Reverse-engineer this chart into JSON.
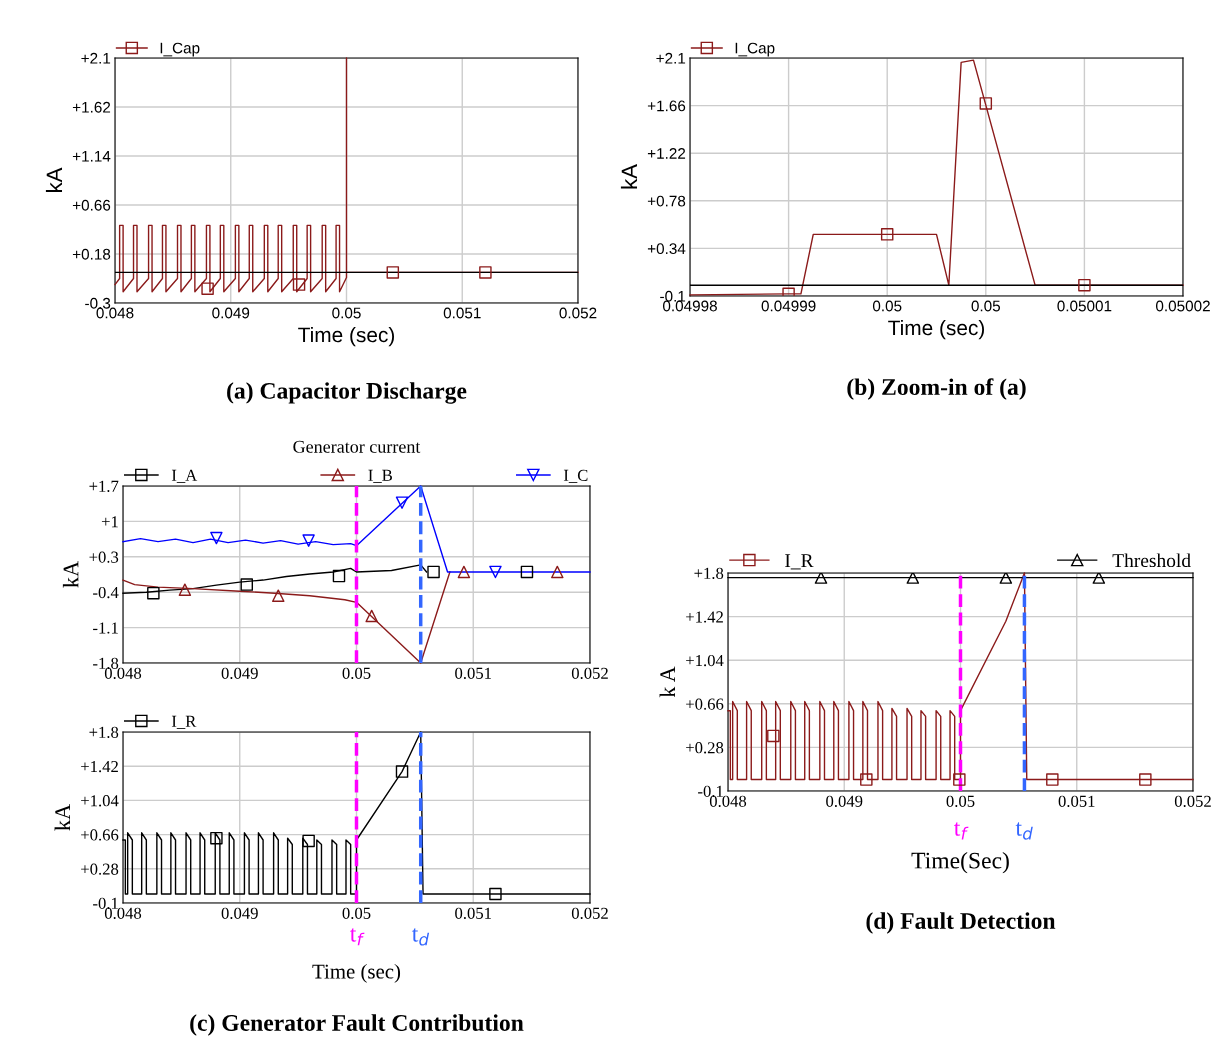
{
  "chart_data": [
    {
      "type": "line",
      "xlabel": "Time (sec)",
      "ylabel": "kA",
      "legend": "top",
      "grid": true,
      "xlim": [
        0.048,
        0.052
      ],
      "xticks": [
        0.048,
        0.049,
        0.05,
        0.051,
        0.052
      ],
      "ylim": [
        -0.3,
        2.1
      ],
      "yticks": [
        -0.3,
        {
          "value": 0.18,
          "label": "+0.18"
        },
        {
          "value": 0.66,
          "label": "+0.66"
        },
        {
          "value": 1.14,
          "label": "+1.14"
        },
        {
          "value": 1.62,
          "label": "+1.62"
        },
        {
          "value": 2.1,
          "label": "+2.1"
        }
      ],
      "ref_lines": [
        {
          "axis": "y",
          "value": 0,
          "color": "#000000",
          "line_style": "solid"
        }
      ],
      "annotations": [
        "(a) Capacitor Discharge"
      ],
      "series": [
        {
          "name": "I_Cap",
          "color": "#8b1a1a",
          "x": [
            0.048,
            0.04804,
            0.04804,
            0.04807,
            0.04807,
            0.04816,
            0.04816,
            0.04819,
            0.04819,
            0.04829,
            0.04829,
            0.04832,
            0.04832,
            0.04841,
            0.04841,
            0.04844,
            0.04844,
            0.04854,
            0.04854,
            0.04857,
            0.04857,
            0.04866,
            0.04866,
            0.04869,
            0.04869,
            0.04879,
            0.04879,
            0.04882,
            0.04882,
            0.04891,
            0.04891,
            0.04894,
            0.04894,
            0.04904,
            0.04904,
            0.04907,
            0.04907,
            0.04916,
            0.04916,
            0.04919,
            0.04919,
            0.04929,
            0.04929,
            0.04932,
            0.04932,
            0.04941,
            0.04941,
            0.04944,
            0.04944,
            0.04954,
            0.04954,
            0.04957,
            0.04957,
            0.04966,
            0.04966,
            0.04969,
            0.04969,
            0.04979,
            0.04979,
            0.04982,
            0.04982,
            0.04991,
            0.04991,
            0.04994,
            0.04994,
            0.05,
            0.05,
            0.05,
            0.052
          ],
          "values": [
            -0.12,
            -0.06,
            0.46,
            0.46,
            -0.19,
            -0.06,
            0.46,
            0.46,
            -0.19,
            -0.06,
            0.46,
            0.46,
            -0.19,
            -0.06,
            0.46,
            0.46,
            -0.19,
            -0.06,
            0.46,
            0.46,
            -0.19,
            -0.06,
            0.46,
            0.46,
            -0.19,
            -0.06,
            0.46,
            0.46,
            -0.19,
            -0.06,
            0.46,
            0.46,
            -0.19,
            -0.06,
            0.46,
            0.46,
            -0.19,
            -0.06,
            0.46,
            0.46,
            -0.19,
            -0.06,
            0.46,
            0.46,
            -0.19,
            -0.06,
            0.46,
            0.46,
            -0.19,
            -0.06,
            0.46,
            0.46,
            -0.19,
            -0.06,
            0.46,
            0.46,
            -0.19,
            -0.06,
            0.46,
            0.46,
            -0.19,
            -0.06,
            0.46,
            0.46,
            -0.19,
            -0.05,
            2.1,
            0,
            0
          ]
        },
        {
          "type": "scatter",
          "marker": "square",
          "color": "#8b1a1a",
          "x": [
            0.0488,
            0.04959,
            0.0504,
            0.0512
          ],
          "values": [
            -0.16,
            -0.12,
            0,
            0
          ]
        }
      ]
    },
    {
      "type": "line",
      "xlabel": "Time (sec)",
      "ylabel": "kA",
      "legend": "top",
      "grid": true,
      "xlim": [
        0.04998,
        0.05002
      ],
      "xticks": [
        0.04998,
        {
          "value": 0.049988,
          "label": "0.04999"
        },
        {
          "value": 0.049996,
          "label": "0.05"
        },
        {
          "value": 0.050004,
          "label": "0.05"
        },
        {
          "value": 0.050012,
          "label": "0.05001"
        },
        0.05002
      ],
      "ylim": [
        -0.1,
        2.1
      ],
      "yticks": [
        -0.1,
        {
          "value": 0.34,
          "label": "+0.34"
        },
        {
          "value": 0.78,
          "label": "+0.78"
        },
        {
          "value": 1.22,
          "label": "+1.22"
        },
        {
          "value": 1.66,
          "label": "+1.66"
        },
        {
          "value": 2.1,
          "label": "+2.1"
        }
      ],
      "ref_lines": [
        {
          "axis": "y",
          "value": 0,
          "color": "#000000",
          "line_style": "solid"
        }
      ],
      "annotations": [
        "(b) Zoom-in of (a)"
      ],
      "series": [
        {
          "name": "I_Cap",
          "color": "#8b1a1a",
          "x": [
            0.04998,
            0.049988,
            0.049989,
            0.04999,
            0.05,
            0.050001,
            0.050002,
            0.050003,
            0.050008,
            0.05002
          ],
          "values": [
            -0.09,
            -0.08,
            -0.08,
            0.47,
            0.47,
            0,
            2.06,
            2.08,
            0,
            0
          ]
        },
        {
          "type": "scatter",
          "marker": "square",
          "color": "#8b1a1a",
          "x": [
            0.049988,
            0.049996,
            0.050004,
            0.050012
          ],
          "values": [
            -0.08,
            0.47,
            1.68,
            0
          ]
        }
      ]
    },
    {
      "type": "line",
      "title": "Generator current",
      "ylabel": "kA",
      "legend": "top",
      "grid": true,
      "xlim": [
        0.048,
        0.052
      ],
      "xticks": [
        0.048,
        0.049,
        0.05,
        0.051,
        0.052
      ],
      "ylim": [
        -1.8,
        1.7
      ],
      "yticks": [
        -1.8,
        -1.1,
        -0.4,
        {
          "value": 0.3,
          "label": "+0.3"
        },
        {
          "value": 1,
          "label": "+1"
        },
        {
          "value": 1.7,
          "label": "+1.7"
        }
      ],
      "ref_lines": [
        {
          "axis": "x",
          "value": 0.05,
          "color": "#ff00ff",
          "line_style": "dashed"
        },
        {
          "axis": "x",
          "value": 0.05055,
          "color": "#3366ff",
          "line_style": "dashed"
        }
      ],
      "series": [
        {
          "name": "I_A",
          "color": "#000000",
          "x": [
            0.048,
            0.0482,
            0.0484,
            0.0486,
            0.0488,
            0.049,
            0.0492,
            0.0494,
            0.0496,
            0.0498,
            0.04995,
            0.05,
            0.0503,
            0.05055,
            0.0506
          ],
          "values": [
            -0.42,
            -0.4,
            -0.36,
            -0.33,
            -0.26,
            -0.2,
            -0.16,
            -0.09,
            -0.04,
            0.0,
            0.07,
            0.0,
            0.03,
            0.14,
            0.0
          ]
        },
        {
          "name": "I_B",
          "color": "#8b1a1a",
          "x": [
            0.048,
            0.0481,
            0.0483,
            0.0486,
            0.049,
            0.0493,
            0.0496,
            0.0499,
            0.05,
            0.05055,
            0.0508
          ],
          "values": [
            -0.16,
            -0.25,
            -0.3,
            -0.33,
            -0.38,
            -0.42,
            -0.47,
            -0.55,
            -0.6,
            -1.8,
            0.0
          ]
        },
        {
          "name": "I_C",
          "color": "#0000ff",
          "x": [
            0.048,
            0.04815,
            0.0483,
            0.04845,
            0.0486,
            0.04875,
            0.0489,
            0.04905,
            0.0492,
            0.04935,
            0.0495,
            0.04965,
            0.0498,
            0.04995,
            0.05,
            0.05055,
            0.05078,
            0.052
          ],
          "values": [
            0.6,
            0.66,
            0.6,
            0.65,
            0.58,
            0.65,
            0.58,
            0.63,
            0.57,
            0.62,
            0.55,
            0.6,
            0.54,
            0.56,
            0.52,
            1.7,
            0.0,
            0.0
          ]
        },
        {
          "type": "scatter",
          "marker": "square",
          "color": "#000000",
          "x": [
            0.04826,
            0.04906,
            0.04985,
            0.05066,
            0.05146
          ],
          "values": [
            -0.42,
            -0.25,
            -0.08,
            0,
            0
          ]
        },
        {
          "type": "scatter",
          "marker": "triangle",
          "color": "#8b1a1a",
          "x": [
            0.04853,
            0.04933,
            0.05013,
            0.05092,
            0.05172
          ],
          "values": [
            -0.35,
            -0.47,
            -0.87,
            0,
            0
          ]
        },
        {
          "type": "scatter",
          "marker": "triangle_down",
          "color": "#0000ff",
          "x": [
            0.0488,
            0.04959,
            0.05039,
            0.05119
          ],
          "values": [
            0.67,
            0.62,
            1.37,
            0
          ]
        }
      ]
    },
    {
      "type": "line",
      "xlabel": "Time (sec)",
      "ylabel": "kA",
      "legend": "top",
      "grid": true,
      "xlim": [
        0.048,
        0.052
      ],
      "xticks": [
        0.048,
        0.049,
        0.05,
        0.051,
        0.052
      ],
      "ylim": [
        -0.1,
        1.8
      ],
      "yticks": [
        -0.1,
        {
          "value": 0.28,
          "label": "+0.28"
        },
        {
          "value": 0.66,
          "label": "+0.66"
        },
        {
          "value": 1.04,
          "label": "+1.04"
        },
        {
          "value": 1.42,
          "label": "+1.42"
        },
        {
          "value": 1.8,
          "label": "+1.8"
        }
      ],
      "ref_lines": [
        {
          "axis": "x",
          "value": 0.05,
          "label": "t$_{f}$",
          "color": "#ff00ff",
          "line_style": "dashed"
        },
        {
          "axis": "x",
          "value": 0.05055,
          "label": "t$_{d}$",
          "color": "#3366ff",
          "line_style": "dashed"
        }
      ],
      "annotations": [
        "(c) Generator Fault Contribution"
      ],
      "series": [
        {
          "name": "I_R",
          "color": "#000000",
          "x": [
            0.048,
            0.04802,
            0.04802,
            0.04804,
            0.04804,
            0.04808,
            0.04808,
            0.04816,
            0.04816,
            0.0482,
            0.0482,
            0.04829,
            0.04829,
            0.04833,
            0.04833,
            0.04841,
            0.04841,
            0.04845,
            0.04845,
            0.04854,
            0.04854,
            0.04858,
            0.04858,
            0.04866,
            0.04866,
            0.0487,
            0.0487,
            0.04879,
            0.04879,
            0.04883,
            0.04883,
            0.04891,
            0.04891,
            0.04895,
            0.04895,
            0.04904,
            0.04904,
            0.04908,
            0.04908,
            0.04916,
            0.04916,
            0.0492,
            0.0492,
            0.04929,
            0.04929,
            0.04933,
            0.04933,
            0.04941,
            0.04941,
            0.04945,
            0.04945,
            0.04954,
            0.04954,
            0.04958,
            0.04958,
            0.04966,
            0.04966,
            0.0497,
            0.0497,
            0.04979,
            0.04979,
            0.04983,
            0.04983,
            0.04991,
            0.04991,
            0.04995,
            0.04995,
            0.05,
            0.05,
            0.05039,
            0.05055,
            0.05057,
            0.052
          ],
          "values": [
            0.6,
            0.6,
            0,
            0,
            0.68,
            0.6,
            0,
            0,
            0.68,
            0.6,
            0,
            0,
            0.68,
            0.6,
            0,
            0,
            0.68,
            0.6,
            0,
            0,
            0.68,
            0.6,
            0,
            0,
            0.68,
            0.6,
            0,
            0,
            0.68,
            0.6,
            0,
            0,
            0.68,
            0.6,
            0,
            0,
            0.68,
            0.6,
            0,
            0,
            0.68,
            0.6,
            0,
            0,
            0.68,
            0.6,
            0,
            0,
            0.62,
            0.55,
            0,
            0,
            0.62,
            0.55,
            0,
            0,
            0.6,
            0.55,
            0,
            0,
            0.6,
            0.55,
            0,
            0,
            0.6,
            0.55,
            0,
            0,
            0.6,
            1.36,
            1.8,
            0,
            0
          ]
        },
        {
          "type": "scatter",
          "marker": "square",
          "color": "#000000",
          "x": [
            0.0488,
            0.04959,
            0.05039,
            0.05119
          ],
          "values": [
            0.62,
            0.59,
            1.36,
            0
          ]
        }
      ]
    },
    {
      "type": "line",
      "xlabel": "Time(Sec)",
      "ylabel": "k A",
      "legend": "top",
      "grid": true,
      "xlim": [
        0.048,
        0.052
      ],
      "xticks": [
        0.048,
        0.049,
        0.05,
        0.051,
        0.052
      ],
      "ylim": [
        -0.1,
        1.8
      ],
      "yticks": [
        -0.1,
        {
          "value": 0.28,
          "label": "+0.28"
        },
        {
          "value": 0.66,
          "label": "+0.66"
        },
        {
          "value": 1.04,
          "label": "+1.04"
        },
        {
          "value": 1.42,
          "label": "+1.42"
        },
        {
          "value": 1.8,
          "label": "+1.8"
        }
      ],
      "ref_lines": [
        {
          "axis": "x",
          "value": 0.05,
          "label": "t$_{f}$",
          "color": "#ff00ff",
          "line_style": "dashed"
        },
        {
          "axis": "x",
          "value": 0.05055,
          "label": "t$_{d}$",
          "color": "#3366ff",
          "line_style": "dashed"
        }
      ],
      "annotations": [
        "(d) Fault Detection"
      ],
      "series": [
        {
          "name": "I_R",
          "color": "#8b1a1a",
          "x": [
            0.048,
            0.04802,
            0.04802,
            0.04804,
            0.04804,
            0.04808,
            0.04808,
            0.04816,
            0.04816,
            0.0482,
            0.0482,
            0.04829,
            0.04829,
            0.04833,
            0.04833,
            0.04841,
            0.04841,
            0.04845,
            0.04845,
            0.04854,
            0.04854,
            0.04858,
            0.04858,
            0.04866,
            0.04866,
            0.0487,
            0.0487,
            0.04879,
            0.04879,
            0.04883,
            0.04883,
            0.04891,
            0.04891,
            0.04895,
            0.04895,
            0.04904,
            0.04904,
            0.04908,
            0.04908,
            0.04916,
            0.04916,
            0.0492,
            0.0492,
            0.04929,
            0.04929,
            0.04933,
            0.04933,
            0.04941,
            0.04941,
            0.04945,
            0.04945,
            0.04954,
            0.04954,
            0.04958,
            0.04958,
            0.04966,
            0.04966,
            0.0497,
            0.0497,
            0.04979,
            0.04979,
            0.04983,
            0.04983,
            0.04991,
            0.04991,
            0.04995,
            0.04995,
            0.05,
            0.05,
            0.05039,
            0.05055,
            0.05057,
            0.052
          ],
          "values": [
            0.6,
            0.6,
            0,
            0,
            0.68,
            0.6,
            0,
            0,
            0.68,
            0.6,
            0,
            0,
            0.68,
            0.6,
            0,
            0,
            0.68,
            0.6,
            0,
            0,
            0.68,
            0.6,
            0,
            0,
            0.68,
            0.6,
            0,
            0,
            0.68,
            0.6,
            0,
            0,
            0.68,
            0.6,
            0,
            0,
            0.68,
            0.6,
            0,
            0,
            0.68,
            0.6,
            0,
            0,
            0.68,
            0.6,
            0,
            0,
            0.62,
            0.55,
            0,
            0,
            0.62,
            0.55,
            0,
            0,
            0.6,
            0.55,
            0,
            0,
            0.6,
            0.55,
            0,
            0,
            0.6,
            0.55,
            0,
            0,
            0.6,
            1.38,
            1.8,
            0,
            0
          ]
        },
        {
          "name": "Threshold",
          "color": "#000000",
          "x": [
            0.048,
            0.052
          ],
          "values": [
            1.76,
            1.76
          ]
        },
        {
          "type": "scatter",
          "marker": "square",
          "color": "#8b1a1a",
          "x": [
            0.04839,
            0.04919,
            0.04999,
            0.05079,
            0.05159
          ],
          "values": [
            0.38,
            0,
            0,
            0,
            0
          ]
        },
        {
          "type": "scatter",
          "marker": "triangle",
          "color": "#000000",
          "x": [
            0.0488,
            0.04959,
            0.05039,
            0.05119
          ],
          "values": [
            1.76,
            1.76,
            1.76,
            1.76
          ]
        }
      ]
    }
  ]
}
